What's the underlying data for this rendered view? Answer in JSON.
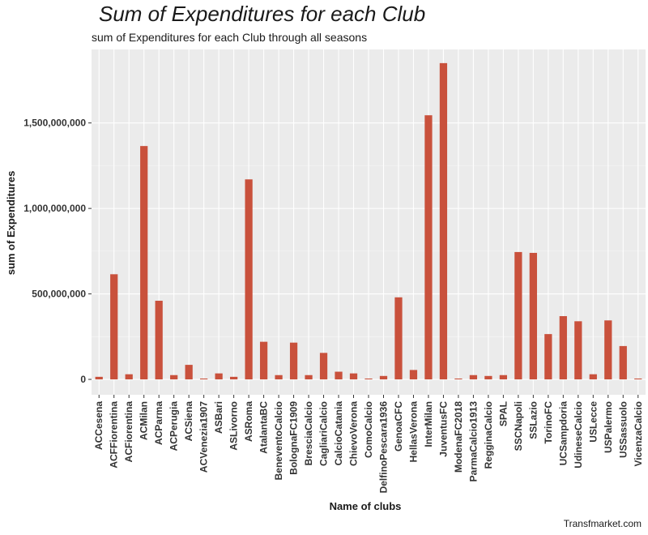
{
  "chart_data": {
    "type": "bar",
    "title": "Sum of Expenditures for each Club",
    "subtitle": "sum of Expenditures for each Club through all seasons",
    "xlabel": "Name of clubs",
    "ylabel": "sum of Expenditures",
    "caption": "Transfmarket.com",
    "ylim": [
      -90000000,
      1930000000
    ],
    "yticks": [
      0,
      500000000,
      1000000000,
      1500000000
    ],
    "ytick_labels": [
      "0",
      "500,000,000",
      "1,000,000,000",
      "1,500,000,000"
    ],
    "grid": true,
    "bar_color": "#c9513c",
    "panel_color": "#ebebeb",
    "categories": [
      "ACCesena",
      "ACFFiorentina",
      "ACFiorentina",
      "ACMilan",
      "ACParma",
      "ACPerugia",
      "ACSiena",
      "ACVenezia1907",
      "ASBari",
      "ASLivorno",
      "ASRoma",
      "AtalantaBC",
      "BeneventoCalcio",
      "BolognaFC1909",
      "BresciaCalcio",
      "CagliariCalcio",
      "CalcioCatania",
      "ChievoVerona",
      "ComoCalcio",
      "DelfinoPescara1936",
      "GenoaCFC",
      "HellasVerona",
      "InterMilan",
      "JuventusFC",
      "ModenaFC2018",
      "ParmaCalcio1913",
      "RegginaCalcio",
      "SPAL",
      "SSCNapoli",
      "SSLazio",
      "TorinoFC",
      "UCSampdoria",
      "UdineseCalcio",
      "USLecce",
      "USPalermo",
      "USSassuolo",
      "VicenzaCalcio"
    ],
    "values": [
      15000000,
      615000000,
      30000000,
      1365000000,
      460000000,
      25000000,
      85000000,
      5000000,
      35000000,
      15000000,
      1170000000,
      220000000,
      25000000,
      215000000,
      25000000,
      155000000,
      45000000,
      35000000,
      5000000,
      20000000,
      480000000,
      55000000,
      1545000000,
      1850000000,
      5000000,
      25000000,
      20000000,
      25000000,
      745000000,
      740000000,
      265000000,
      370000000,
      340000000,
      30000000,
      345000000,
      195000000,
      5000000
    ]
  }
}
